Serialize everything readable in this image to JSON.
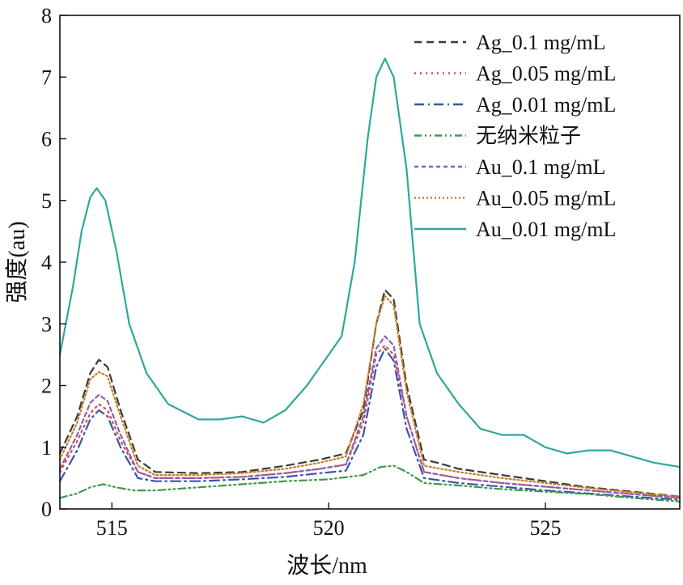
{
  "chart_data": {
    "type": "line",
    "xlabel": "波长/nm",
    "ylabel": "强度(au)",
    "xlim": [
      513.8,
      528.1
    ],
    "ylim": [
      0,
      8
    ],
    "xticks": [
      515,
      520,
      525
    ],
    "yticks": [
      0,
      1,
      2,
      3,
      4,
      5,
      6,
      7,
      8
    ],
    "grid": false,
    "legend_position": "top-right",
    "series": [
      {
        "name": "Ag_0.1 mg/mL",
        "color": "#3a3a3a",
        "dash": "dashed",
        "points": [
          [
            513.8,
            0.9
          ],
          [
            514.2,
            1.5
          ],
          [
            514.5,
            2.2
          ],
          [
            514.7,
            2.42
          ],
          [
            514.9,
            2.3
          ],
          [
            515.2,
            1.6
          ],
          [
            515.6,
            0.8
          ],
          [
            516.0,
            0.6
          ],
          [
            517.0,
            0.58
          ],
          [
            518.0,
            0.6
          ],
          [
            519.0,
            0.7
          ],
          [
            519.8,
            0.8
          ],
          [
            520.4,
            0.9
          ],
          [
            520.8,
            1.6
          ],
          [
            521.1,
            3.0
          ],
          [
            521.3,
            3.55
          ],
          [
            521.5,
            3.4
          ],
          [
            521.8,
            2.0
          ],
          [
            522.2,
            0.8
          ],
          [
            522.5,
            0.75
          ],
          [
            523.0,
            0.65
          ],
          [
            524.0,
            0.55
          ],
          [
            525.0,
            0.45
          ],
          [
            526.0,
            0.35
          ],
          [
            527.0,
            0.28
          ],
          [
            528.1,
            0.2
          ]
        ]
      },
      {
        "name": "Ag_0.05 mg/mL",
        "color": "#e8443a",
        "dash": "dotted",
        "points": [
          [
            513.8,
            0.6
          ],
          [
            514.2,
            1.1
          ],
          [
            514.5,
            1.55
          ],
          [
            514.7,
            1.7
          ],
          [
            514.9,
            1.6
          ],
          [
            515.2,
            1.1
          ],
          [
            515.6,
            0.6
          ],
          [
            516.0,
            0.5
          ],
          [
            517.0,
            0.5
          ],
          [
            518.0,
            0.52
          ],
          [
            519.0,
            0.58
          ],
          [
            519.8,
            0.65
          ],
          [
            520.4,
            0.72
          ],
          [
            520.8,
            1.4
          ],
          [
            521.1,
            2.5
          ],
          [
            521.3,
            2.65
          ],
          [
            521.5,
            2.5
          ],
          [
            521.8,
            1.5
          ],
          [
            522.2,
            0.6
          ],
          [
            523.0,
            0.5
          ],
          [
            524.0,
            0.42
          ],
          [
            525.0,
            0.36
          ],
          [
            526.0,
            0.3
          ],
          [
            527.0,
            0.24
          ],
          [
            528.1,
            0.18
          ]
        ]
      },
      {
        "name": "Ag_0.01 mg/mL",
        "color": "#3a56a8",
        "dash": "dashdot",
        "points": [
          [
            513.8,
            0.45
          ],
          [
            514.2,
            0.95
          ],
          [
            514.5,
            1.45
          ],
          [
            514.7,
            1.6
          ],
          [
            514.9,
            1.5
          ],
          [
            515.2,
            1.0
          ],
          [
            515.6,
            0.5
          ],
          [
            516.0,
            0.45
          ],
          [
            517.0,
            0.45
          ],
          [
            518.0,
            0.48
          ],
          [
            519.0,
            0.52
          ],
          [
            519.8,
            0.58
          ],
          [
            520.4,
            0.62
          ],
          [
            520.8,
            1.2
          ],
          [
            521.1,
            2.3
          ],
          [
            521.3,
            2.6
          ],
          [
            521.5,
            2.4
          ],
          [
            521.8,
            1.3
          ],
          [
            522.2,
            0.5
          ],
          [
            523.0,
            0.42
          ],
          [
            524.0,
            0.36
          ],
          [
            525.0,
            0.3
          ],
          [
            526.0,
            0.25
          ],
          [
            527.0,
            0.2
          ],
          [
            528.1,
            0.15
          ]
        ]
      },
      {
        "name": "无纳米粒子",
        "color": "#3c9a4a",
        "dash": "dashdotdot",
        "points": [
          [
            513.8,
            0.18
          ],
          [
            514.2,
            0.25
          ],
          [
            514.5,
            0.35
          ],
          [
            514.8,
            0.4
          ],
          [
            515.1,
            0.35
          ],
          [
            515.5,
            0.3
          ],
          [
            516.0,
            0.3
          ],
          [
            517.0,
            0.35
          ],
          [
            518.0,
            0.4
          ],
          [
            519.0,
            0.45
          ],
          [
            520.0,
            0.48
          ],
          [
            520.8,
            0.55
          ],
          [
            521.2,
            0.68
          ],
          [
            521.5,
            0.7
          ],
          [
            521.8,
            0.6
          ],
          [
            522.2,
            0.42
          ],
          [
            523.0,
            0.38
          ],
          [
            524.0,
            0.32
          ],
          [
            525.0,
            0.28
          ],
          [
            526.0,
            0.24
          ],
          [
            527.0,
            0.18
          ],
          [
            528.1,
            0.12
          ]
        ]
      },
      {
        "name": "Au_0.1 mg/mL",
        "color": "#8a5fb5",
        "dash": "shortdash",
        "points": [
          [
            513.8,
            0.65
          ],
          [
            514.2,
            1.2
          ],
          [
            514.5,
            1.72
          ],
          [
            514.7,
            1.85
          ],
          [
            514.9,
            1.75
          ],
          [
            515.2,
            1.2
          ],
          [
            515.6,
            0.6
          ],
          [
            516.0,
            0.5
          ],
          [
            517.0,
            0.5
          ],
          [
            518.0,
            0.52
          ],
          [
            519.0,
            0.58
          ],
          [
            519.8,
            0.65
          ],
          [
            520.4,
            0.72
          ],
          [
            520.8,
            1.5
          ],
          [
            521.1,
            2.6
          ],
          [
            521.3,
            2.8
          ],
          [
            521.5,
            2.65
          ],
          [
            521.8,
            1.5
          ],
          [
            522.2,
            0.6
          ],
          [
            523.0,
            0.5
          ],
          [
            524.0,
            0.42
          ],
          [
            525.0,
            0.36
          ],
          [
            526.0,
            0.3
          ],
          [
            527.0,
            0.24
          ],
          [
            528.1,
            0.18
          ]
        ]
      },
      {
        "name": "Au_0.05 mg/mL",
        "color": "#c8802a",
        "dash": "finedot",
        "points": [
          [
            513.8,
            0.8
          ],
          [
            514.2,
            1.4
          ],
          [
            514.5,
            2.1
          ],
          [
            514.7,
            2.22
          ],
          [
            514.9,
            2.15
          ],
          [
            515.2,
            1.5
          ],
          [
            515.6,
            0.7
          ],
          [
            516.0,
            0.55
          ],
          [
            517.0,
            0.55
          ],
          [
            518.0,
            0.58
          ],
          [
            519.0,
            0.65
          ],
          [
            519.8,
            0.75
          ],
          [
            520.4,
            0.85
          ],
          [
            520.8,
            1.7
          ],
          [
            521.1,
            3.0
          ],
          [
            521.3,
            3.45
          ],
          [
            521.5,
            3.3
          ],
          [
            521.8,
            1.9
          ],
          [
            522.2,
            0.7
          ],
          [
            523.0,
            0.6
          ],
          [
            524.0,
            0.5
          ],
          [
            525.0,
            0.42
          ],
          [
            526.0,
            0.34
          ],
          [
            527.0,
            0.27
          ],
          [
            528.1,
            0.2
          ]
        ]
      },
      {
        "name": "Au_0.01 mg/mL",
        "color": "#2fa89a",
        "dash": "solid",
        "points": [
          [
            513.8,
            2.5
          ],
          [
            514.1,
            3.6
          ],
          [
            514.3,
            4.5
          ],
          [
            514.5,
            5.05
          ],
          [
            514.65,
            5.2
          ],
          [
            514.85,
            5.0
          ],
          [
            515.1,
            4.2
          ],
          [
            515.4,
            3.0
          ],
          [
            515.8,
            2.2
          ],
          [
            516.3,
            1.7
          ],
          [
            517.0,
            1.45
          ],
          [
            517.5,
            1.45
          ],
          [
            518.0,
            1.5
          ],
          [
            518.5,
            1.4
          ],
          [
            519.0,
            1.6
          ],
          [
            519.5,
            2.0
          ],
          [
            519.9,
            2.4
          ],
          [
            520.3,
            2.8
          ],
          [
            520.6,
            4.0
          ],
          [
            520.9,
            6.0
          ],
          [
            521.1,
            7.0
          ],
          [
            521.3,
            7.3
          ],
          [
            521.5,
            7.0
          ],
          [
            521.8,
            5.5
          ],
          [
            522.1,
            3.0
          ],
          [
            522.5,
            2.2
          ],
          [
            523.0,
            1.7
          ],
          [
            523.5,
            1.3
          ],
          [
            524.0,
            1.2
          ],
          [
            524.5,
            1.2
          ],
          [
            525.0,
            1.0
          ],
          [
            525.5,
            0.9
          ],
          [
            526.0,
            0.95
          ],
          [
            526.5,
            0.95
          ],
          [
            527.0,
            0.85
          ],
          [
            527.5,
            0.75
          ],
          [
            528.1,
            0.68
          ]
        ]
      }
    ]
  }
}
